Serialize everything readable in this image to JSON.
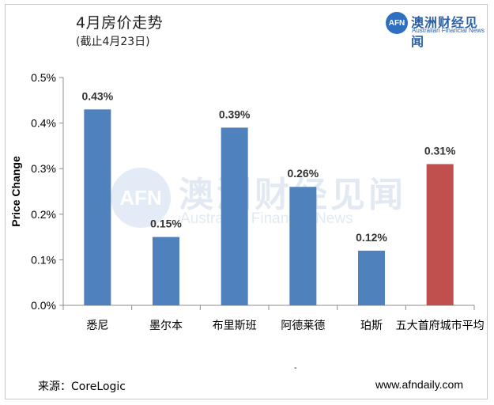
{
  "header": {
    "title": "4月房价走势",
    "subtitle": "(截止4月23日)"
  },
  "logo": {
    "badge": "AFN",
    "name_cn": "澳洲财经见闻",
    "name_en": "Australian Financial News"
  },
  "watermark": {
    "badge": "AFN",
    "name_cn": "澳洲财经见闻",
    "name_en": "Australian Financial News"
  },
  "footer": {
    "source": "来源：CoreLogic",
    "site": "www.afndaily.com",
    "dash": "-"
  },
  "colors": {
    "bar": "#4f81bd",
    "highlight_bar": "#c0504d",
    "axis": "#8c8c8c"
  },
  "chart_data": {
    "type": "bar",
    "title": "4月房价走势",
    "subtitle": "(截止4月23日)",
    "xlabel": "",
    "ylabel": "Price Change",
    "ylim": [
      0,
      0.5
    ],
    "yticks": [
      "0.0%",
      "0.1%",
      "0.2%",
      "0.3%",
      "0.4%",
      "0.5%"
    ],
    "grid": false,
    "categories": [
      "悉尼",
      "墨尔本",
      "布里斯班",
      "阿德莱德",
      "珀斯",
      "五大首府城市平均"
    ],
    "values": [
      0.43,
      0.15,
      0.39,
      0.26,
      0.12,
      0.31
    ],
    "data_labels": [
      "0.43%",
      "0.15%",
      "0.39%",
      "0.26%",
      "0.12%",
      "0.31%"
    ],
    "highlight_index": 5
  }
}
